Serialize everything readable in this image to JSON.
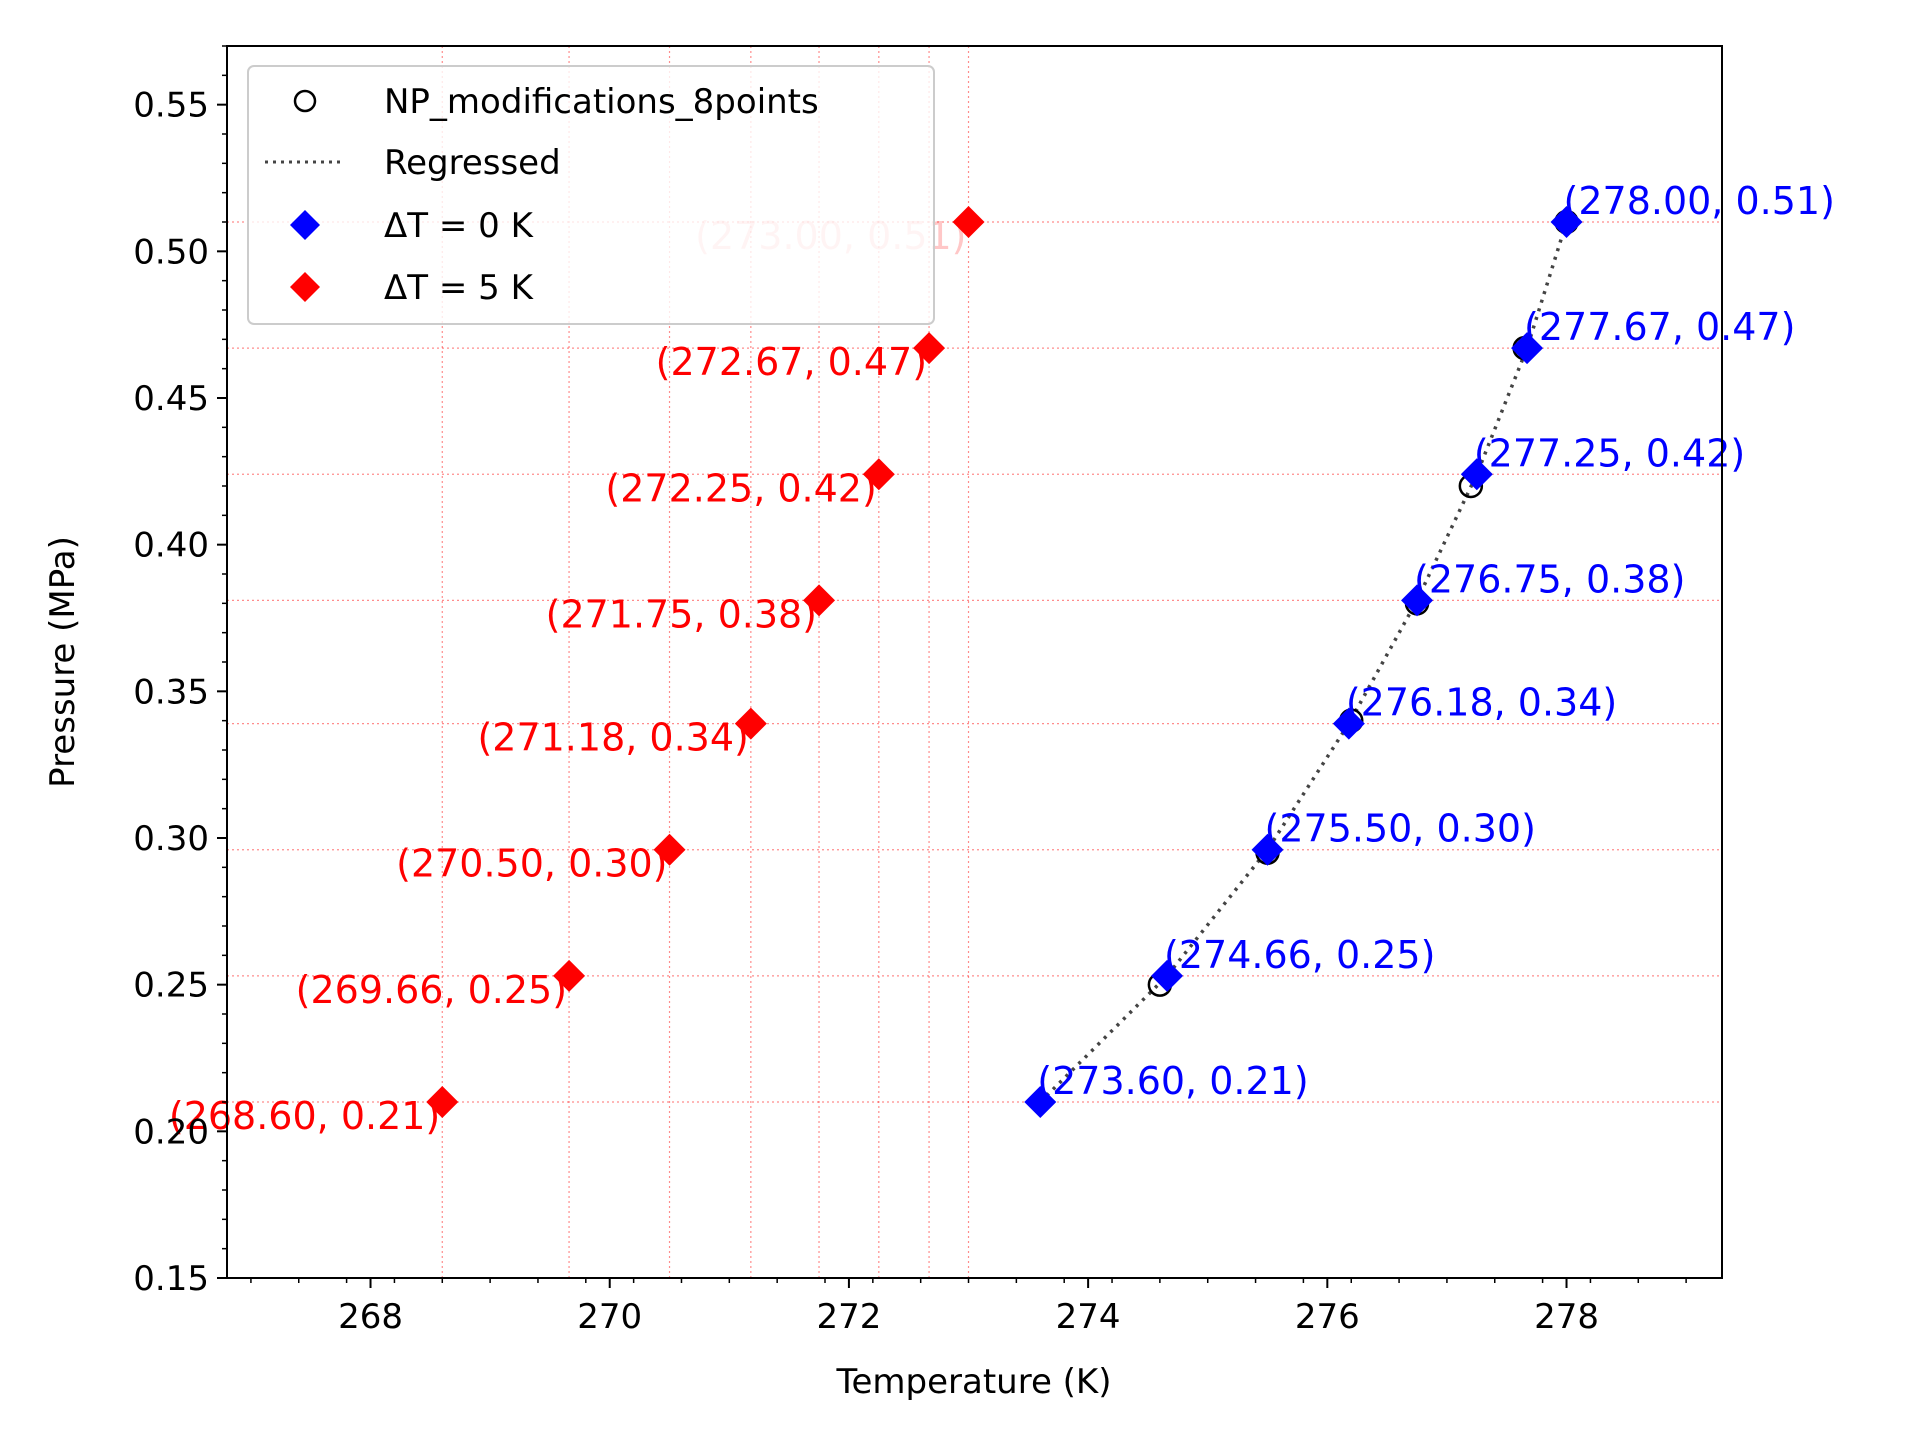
{
  "chart_data": {
    "type": "scatter",
    "title": "",
    "xlabel": "Temperature (K)",
    "ylabel": "Pressure (MPa)",
    "xlim": [
      266.8,
      279.3
    ],
    "ylim": [
      0.15,
      0.57
    ],
    "x_ticks": [
      "268",
      "270",
      "272",
      "274",
      "276",
      "278"
    ],
    "y_ticks": [
      "0.15",
      "0.20",
      "0.25",
      "0.30",
      "0.35",
      "0.40",
      "0.45",
      "0.50",
      "0.55"
    ],
    "legend_position": "top-left",
    "grid": "red dotted guide lines at each ΔT point",
    "series": [
      {
        "name": "NP_modifications_8points",
        "marker": "open-circle",
        "color": "#000000",
        "x": [
          274.6,
          275.5,
          276.2,
          276.75,
          277.2,
          277.65,
          278.0
        ],
        "y": [
          0.25,
          0.295,
          0.34,
          0.38,
          0.42,
          0.467,
          0.51
        ]
      },
      {
        "name": "Regressed",
        "marker": "dotted-line",
        "color": "#444444",
        "x": [
          273.6,
          274.66,
          275.5,
          276.18,
          276.75,
          277.25,
          277.67,
          278.0
        ],
        "y": [
          0.21,
          0.253,
          0.296,
          0.339,
          0.381,
          0.424,
          0.467,
          0.51
        ]
      },
      {
        "name": "ΔT = 0 K",
        "marker": "diamond",
        "color": "#0000ff",
        "x": [
          273.6,
          274.66,
          275.5,
          276.18,
          276.75,
          277.25,
          277.67,
          278.0
        ],
        "y": [
          0.21,
          0.253,
          0.296,
          0.339,
          0.381,
          0.424,
          0.467,
          0.51
        ],
        "labels": [
          "(273.60, 0.21)",
          "(274.66, 0.25)",
          "(275.50, 0.30)",
          "(276.18, 0.34)",
          "(276.75, 0.38)",
          "(277.25, 0.42)",
          "(277.67, 0.47)",
          "(278.00, 0.51)"
        ]
      },
      {
        "name": "ΔT = 5 K",
        "marker": "diamond",
        "color": "#ff0000",
        "x": [
          268.6,
          269.66,
          270.5,
          271.18,
          271.75,
          272.25,
          272.67,
          273.0
        ],
        "y": [
          0.21,
          0.253,
          0.296,
          0.339,
          0.381,
          0.424,
          0.467,
          0.51
        ],
        "labels": [
          "(268.60, 0.21)",
          "(269.66, 0.25)",
          "(270.50, 0.30)",
          "(271.18, 0.34)",
          "(271.75, 0.38)",
          "(272.25, 0.42)",
          "(272.67, 0.47)",
          "(273.00, 0.51)"
        ]
      }
    ]
  }
}
